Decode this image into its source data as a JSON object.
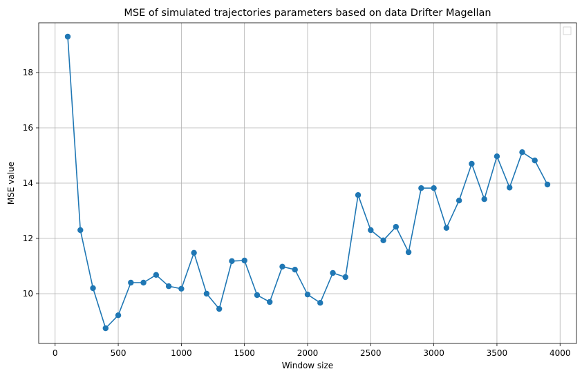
{
  "chart_data": {
    "type": "line",
    "title": "MSE of simulated trajectories parameters based on data Drifter Magellan",
    "xlabel": "Window size",
    "ylabel": "MSE value",
    "xlim": [
      -130,
      4130
    ],
    "ylim": [
      8.2,
      19.8
    ],
    "xticks": [
      0,
      500,
      1000,
      1500,
      2000,
      2500,
      3000,
      3500,
      4000
    ],
    "yticks": [
      10,
      12,
      14,
      16,
      18
    ],
    "grid": true,
    "legend": "top-right",
    "line_color": "#1f77b4",
    "series": [
      {
        "x": [
          100,
          200,
          300,
          400,
          500,
          600,
          700,
          800,
          900,
          1000,
          1100,
          1200,
          1300,
          1400,
          1500,
          1600,
          1700,
          1800,
          1900,
          2000,
          2100,
          2200,
          2300,
          2400,
          2500,
          2600,
          2700,
          2800,
          2900,
          3000,
          3100,
          3200,
          3300,
          3400,
          3500,
          3600,
          3700,
          3800,
          3900
        ],
        "values": [
          19.3,
          12.3,
          10.2,
          8.75,
          9.22,
          10.4,
          10.4,
          10.68,
          10.27,
          10.18,
          11.48,
          10.0,
          9.45,
          11.18,
          11.2,
          9.95,
          9.7,
          10.98,
          10.87,
          9.97,
          9.67,
          10.75,
          10.6,
          13.57,
          12.3,
          11.93,
          12.42,
          11.5,
          13.82,
          13.82,
          12.38,
          13.37,
          14.7,
          13.42,
          14.97,
          13.84,
          15.12,
          14.82,
          13.95
        ]
      }
    ]
  }
}
